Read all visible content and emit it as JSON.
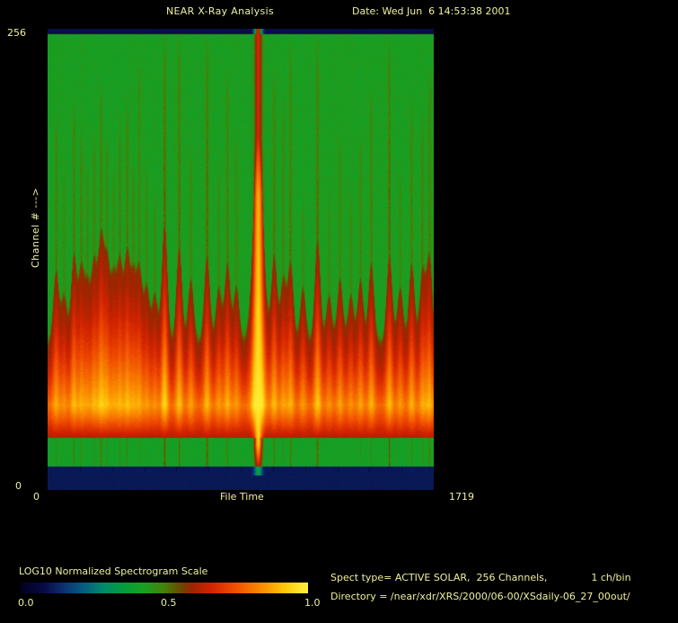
{
  "window": {
    "bg": "#000000",
    "text_color": "#EFEFA0"
  },
  "header": {
    "title": "NEAR X-Ray Analysis",
    "date": "Date: Wed Jun  6 14:53:38 2001"
  },
  "y_axis": {
    "max": "256",
    "min": "0",
    "label": "Channel # --->"
  },
  "x_axis": {
    "min": "0",
    "title": "File Time",
    "max": "1719"
  },
  "colorbar": {
    "title": "LOG10 Normalized Spectrogram Scale",
    "ticks": [
      "0.0",
      "0.5",
      "1.0"
    ]
  },
  "info": {
    "spect_type": "Spect type= ACTIVE SOLAR,  256 Channels,              1 ch/bin",
    "directory": "Directory = /near/xdr/XRS/2000/06-00/XSdaily-06_27_00out/"
  },
  "chart_data": {
    "type": "heatmap",
    "title": "NEAR X-Ray Analysis",
    "xlabel": "File Time",
    "ylabel": "Channel # --->",
    "x_range": [
      0,
      1719
    ],
    "y_range": [
      0,
      256
    ],
    "grid": false,
    "colorbar": {
      "label": "LOG10 Normalized Spectrogram Scale",
      "range": [
        0.0,
        1.0
      ],
      "ticks": [
        0.0,
        0.5,
        1.0
      ],
      "position": "bottom-left"
    },
    "colormap_rgb": [
      [
        0.0,
        2,
        2,
        30
      ],
      [
        0.08,
        8,
        12,
        70
      ],
      [
        0.15,
        12,
        50,
        115
      ],
      [
        0.22,
        5,
        95,
        130
      ],
      [
        0.29,
        0,
        140,
        105
      ],
      [
        0.36,
        5,
        158,
        60
      ],
      [
        0.43,
        25,
        161,
        33
      ],
      [
        0.5,
        70,
        130,
        10
      ],
      [
        0.56,
        110,
        70,
        0
      ],
      [
        0.6,
        160,
        35,
        0
      ],
      [
        0.66,
        210,
        35,
        0
      ],
      [
        0.74,
        240,
        75,
        0
      ],
      [
        0.83,
        250,
        135,
        0
      ],
      [
        0.92,
        255,
        200,
        10
      ],
      [
        1.0,
        255,
        242,
        60
      ]
    ],
    "background_value": 0.43,
    "channel_bands": [
      {
        "channels": [
          253,
          256
        ],
        "value": 0.085,
        "color": "navy",
        "note": "dark top band"
      },
      {
        "channels": [
          85,
          253
        ],
        "value": 0.43,
        "color": "green",
        "note": "quiet background with vertical event streaks"
      },
      {
        "channels": [
          47,
          85
        ],
        "value": 0.62,
        "color": "red",
        "note": "rising emission, spiky upper edge"
      },
      {
        "channels": [
          29,
          47
        ],
        "value": 0.82,
        "color": "orange-yellow",
        "note": "bright emission core band"
      },
      {
        "channels": [
          13,
          29
        ],
        "value": 0.42,
        "color": "green",
        "note": "low green underband"
      },
      {
        "channels": [
          0,
          13
        ],
        "value": 0.105,
        "color": "navy",
        "note": "no-signal bottom band"
      }
    ],
    "flare": {
      "t": 936,
      "peak_value": 0.99,
      "note": "major flare spanning all 256 channels, bright yellow core"
    },
    "events_format": [
      "file_time",
      "flame_strength",
      "line_strength",
      "line_reach"
    ],
    "events": [
      [
        36,
        0.45,
        0.14,
        0.75
      ],
      [
        72,
        0.3,
        0.1,
        0.6
      ],
      [
        115,
        0.55,
        0.16,
        0.8
      ],
      [
        148,
        0.45,
        0.13,
        0.7
      ],
      [
        175,
        0.35,
        0.12,
        0.6
      ],
      [
        205,
        0.5,
        0.14,
        0.7
      ],
      [
        236,
        0.65,
        0.18,
        0.85
      ],
      [
        263,
        0.5,
        0.14,
        0.7
      ],
      [
        292,
        0.4,
        0.12,
        0.6
      ],
      [
        320,
        0.5,
        0.15,
        0.75
      ],
      [
        352,
        0.55,
        0.16,
        0.8
      ],
      [
        380,
        0.4,
        0.12,
        0.6
      ],
      [
        407,
        0.45,
        0.14,
        0.95
      ],
      [
        440,
        0.35,
        0.11,
        0.6
      ],
      [
        476,
        0.3,
        0.1,
        0.5
      ],
      [
        519,
        0.75,
        0.22,
        1.0
      ],
      [
        584,
        0.6,
        0.18,
        1.0
      ],
      [
        636,
        0.4,
        0.12,
        0.65
      ],
      [
        708,
        0.55,
        0.2,
        1.0
      ],
      [
        760,
        0.35,
        0.11,
        0.6
      ],
      [
        799,
        0.5,
        0.16,
        0.9
      ],
      [
        839,
        0.35,
        0.12,
        0.7
      ],
      [
        1007,
        0.55,
        0.16,
        0.9
      ],
      [
        1047,
        0.4,
        0.13,
        0.8
      ],
      [
        1080,
        0.5,
        0.17,
        1.0
      ],
      [
        1135,
        0.35,
        0.1,
        0.5
      ],
      [
        1200,
        0.65,
        0.2,
        1.0
      ],
      [
        1251,
        0.3,
        0.1,
        0.5
      ],
      [
        1300,
        0.4,
        0.12,
        0.7
      ],
      [
        1348,
        0.3,
        0.1,
        0.5
      ],
      [
        1391,
        0.4,
        0.13,
        0.7
      ],
      [
        1439,
        0.5,
        0.15,
        0.85
      ],
      [
        1520,
        0.55,
        0.2,
        1.0
      ],
      [
        1568,
        0.35,
        0.11,
        0.6
      ],
      [
        1619,
        0.5,
        0.15,
        0.8
      ],
      [
        1667,
        0.45,
        0.14,
        0.75
      ],
      [
        1698,
        0.55,
        0.16,
        0.9
      ]
    ]
  }
}
